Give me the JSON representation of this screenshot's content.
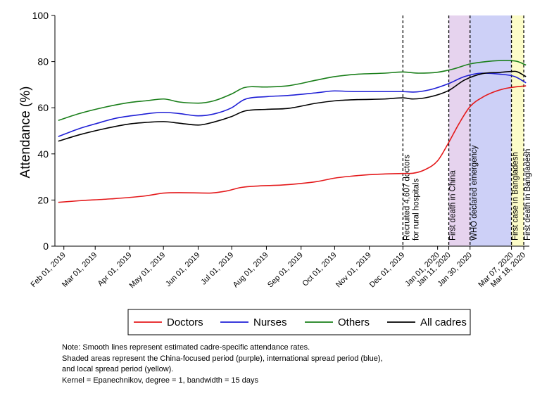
{
  "chart_data": {
    "type": "line",
    "ylabel": "Attendance (%)",
    "ylim": [
      0,
      100
    ],
    "yticks": [
      0,
      20,
      40,
      60,
      80,
      100
    ],
    "xlim": [
      "2019-01-24",
      "2020-03-23"
    ],
    "xticks": [
      {
        "date": "2019-02-01",
        "label": "Feb 01, 2019"
      },
      {
        "date": "2019-03-01",
        "label": "Mar 01, 2019"
      },
      {
        "date": "2019-04-01",
        "label": "Apr 01, 2019"
      },
      {
        "date": "2019-05-01",
        "label": "May 01, 2019"
      },
      {
        "date": "2019-06-01",
        "label": "Jun 01, 2019"
      },
      {
        "date": "2019-07-01",
        "label": "Jul 01, 2019"
      },
      {
        "date": "2019-08-01",
        "label": "Aug 01, 2019"
      },
      {
        "date": "2019-09-01",
        "label": "Sep 01, 2019"
      },
      {
        "date": "2019-10-01",
        "label": "Oct 01, 2019"
      },
      {
        "date": "2019-11-01",
        "label": "Nov 01, 2019"
      },
      {
        "date": "2019-12-01",
        "label": "Dec 01, 2019"
      },
      {
        "date": "2020-01-01",
        "label": "Jan 01, 2020"
      },
      {
        "date": "2020-01-11",
        "label": "Jan 11, 2020"
      },
      {
        "date": "2020-01-30",
        "label": "Jan 30, 2020"
      },
      {
        "date": "2020-03-07",
        "label": "Mar 07, 2020"
      },
      {
        "date": "2020-03-18",
        "label": "Mar 18, 2020"
      }
    ],
    "shaded_periods": [
      {
        "start": "2020-01-11",
        "end": "2020-01-30",
        "color": "#e6d3ee"
      },
      {
        "start": "2020-01-30",
        "end": "2020-03-07",
        "color": "#cdd0f7"
      },
      {
        "start": "2020-03-07",
        "end": "2020-03-18",
        "color": "#fcfcc8"
      }
    ],
    "events": [
      {
        "date": "2019-12-01",
        "lines": [
          "Recruited 4,607 doctors",
          "for rural hospitals"
        ]
      },
      {
        "date": "2020-01-11",
        "lines": [
          "First death in China"
        ]
      },
      {
        "date": "2020-01-30",
        "lines": [
          "WHO declared emergency"
        ]
      },
      {
        "date": "2020-03-07",
        "lines": [
          "First case in Bangladesh"
        ]
      },
      {
        "date": "2020-03-18",
        "lines": [
          "First death in Bangladesh"
        ]
      }
    ],
    "series": [
      {
        "name": "Doctors",
        "color": "#e41a1c",
        "points": [
          [
            "2019-01-27",
            19
          ],
          [
            "2019-02-15",
            19.7
          ],
          [
            "2019-03-15",
            20.5
          ],
          [
            "2019-04-15",
            21.8
          ],
          [
            "2019-05-01",
            23
          ],
          [
            "2019-05-15",
            23.2
          ],
          [
            "2019-06-10",
            23
          ],
          [
            "2019-06-25",
            23.8
          ],
          [
            "2019-07-10",
            25.5
          ],
          [
            "2019-07-25",
            26.1
          ],
          [
            "2019-08-15",
            26.5
          ],
          [
            "2019-09-15",
            28
          ],
          [
            "2019-10-01",
            29.5
          ],
          [
            "2019-10-15",
            30.3
          ],
          [
            "2019-11-01",
            31
          ],
          [
            "2019-11-15",
            31.3
          ],
          [
            "2019-12-01",
            31.5
          ],
          [
            "2019-12-10",
            31.6
          ],
          [
            "2019-12-20",
            33
          ],
          [
            "2020-01-01",
            37
          ],
          [
            "2020-01-11",
            45
          ],
          [
            "2020-01-20",
            53
          ],
          [
            "2020-01-30",
            60.5
          ],
          [
            "2020-02-10",
            64.5
          ],
          [
            "2020-02-20",
            66.8
          ],
          [
            "2020-03-01",
            68.3
          ],
          [
            "2020-03-10",
            69
          ],
          [
            "2020-03-20",
            69.5
          ]
        ]
      },
      {
        "name": "Nurses",
        "color": "#1f1fd6",
        "points": [
          [
            "2019-01-27",
            47.5
          ],
          [
            "2019-02-15",
            51
          ],
          [
            "2019-03-01",
            53
          ],
          [
            "2019-03-20",
            55.5
          ],
          [
            "2019-04-10",
            57
          ],
          [
            "2019-05-01",
            58
          ],
          [
            "2019-05-15",
            57.5
          ],
          [
            "2019-06-01",
            56.5
          ],
          [
            "2019-06-15",
            57.3
          ],
          [
            "2019-07-01",
            60
          ],
          [
            "2019-07-12",
            63.5
          ],
          [
            "2019-08-01",
            64.8
          ],
          [
            "2019-08-20",
            65.3
          ],
          [
            "2019-09-15",
            66.5
          ],
          [
            "2019-10-01",
            67.3
          ],
          [
            "2019-10-20",
            67
          ],
          [
            "2019-11-15",
            67
          ],
          [
            "2019-12-01",
            67
          ],
          [
            "2019-12-10",
            66.8
          ],
          [
            "2019-12-25",
            67.8
          ],
          [
            "2020-01-11",
            70.5
          ],
          [
            "2020-01-25",
            73.5
          ],
          [
            "2020-02-10",
            75
          ],
          [
            "2020-02-25",
            74.6
          ],
          [
            "2020-03-10",
            73.5
          ],
          [
            "2020-03-20",
            70.8
          ]
        ]
      },
      {
        "name": "Others",
        "color": "#1a7f1a",
        "points": [
          [
            "2019-01-27",
            54.5
          ],
          [
            "2019-02-15",
            57.5
          ],
          [
            "2019-03-10",
            60.3
          ],
          [
            "2019-04-01",
            62.3
          ],
          [
            "2019-04-15",
            63
          ],
          [
            "2019-05-01",
            63.8
          ],
          [
            "2019-05-15",
            62.5
          ],
          [
            "2019-06-01",
            62
          ],
          [
            "2019-06-15",
            63
          ],
          [
            "2019-07-01",
            66
          ],
          [
            "2019-07-12",
            68.7
          ],
          [
            "2019-08-01",
            69
          ],
          [
            "2019-08-20",
            69.5
          ],
          [
            "2019-09-15",
            72
          ],
          [
            "2019-10-01",
            73.5
          ],
          [
            "2019-10-20",
            74.5
          ],
          [
            "2019-11-15",
            75
          ],
          [
            "2019-12-01",
            75.5
          ],
          [
            "2019-12-15",
            75
          ],
          [
            "2020-01-01",
            75.4
          ],
          [
            "2020-01-15",
            76.8
          ],
          [
            "2020-01-30",
            79
          ],
          [
            "2020-02-15",
            80.1
          ],
          [
            "2020-03-01",
            80.5
          ],
          [
            "2020-03-12",
            80.1
          ],
          [
            "2020-03-20",
            78.5
          ]
        ]
      },
      {
        "name": "All cadres",
        "color": "#000000",
        "points": [
          [
            "2019-01-27",
            45.5
          ],
          [
            "2019-02-15",
            48.3
          ],
          [
            "2019-03-10",
            51
          ],
          [
            "2019-04-01",
            53
          ],
          [
            "2019-04-20",
            53.8
          ],
          [
            "2019-05-01",
            54
          ],
          [
            "2019-05-15",
            53.3
          ],
          [
            "2019-06-01",
            52.5
          ],
          [
            "2019-06-15",
            53.8
          ],
          [
            "2019-07-01",
            56.2
          ],
          [
            "2019-07-12",
            58.5
          ],
          [
            "2019-08-01",
            59.3
          ],
          [
            "2019-08-20",
            59.7
          ],
          [
            "2019-09-15",
            62
          ],
          [
            "2019-10-01",
            63
          ],
          [
            "2019-10-20",
            63.5
          ],
          [
            "2019-11-15",
            63.8
          ],
          [
            "2019-12-01",
            64.3
          ],
          [
            "2019-12-10",
            63.8
          ],
          [
            "2019-12-25",
            64.7
          ],
          [
            "2020-01-11",
            67.5
          ],
          [
            "2020-01-25",
            72
          ],
          [
            "2020-02-10",
            74.8
          ],
          [
            "2020-02-25",
            75.3
          ],
          [
            "2020-03-10",
            75.8
          ],
          [
            "2020-03-20",
            73.5
          ]
        ]
      }
    ],
    "legend": [
      "Doctors",
      "Nurses",
      "Others",
      "All cadres"
    ],
    "legend_position": "bottom"
  },
  "note": [
    "Note: Smooth lines represent estimated cadre-specific attendance rates.",
    "Shaded areas represent the China-focused period (purple), international spread period (blue),",
    "and local spread period (yellow).",
    "Kernel = Epanechnikov, degree = 1, bandwidth = 15 days"
  ]
}
